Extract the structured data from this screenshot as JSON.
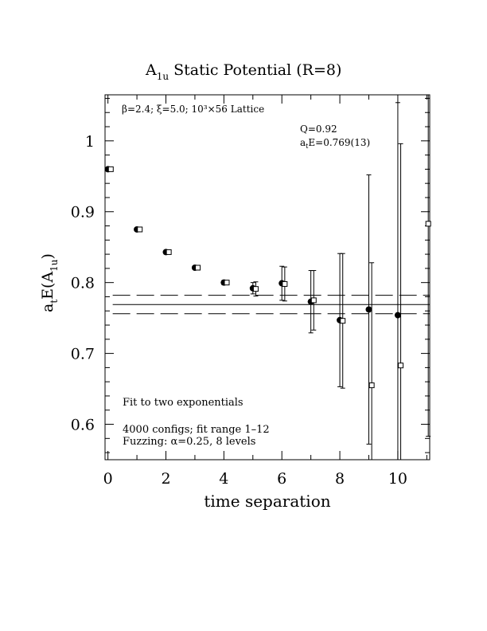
{
  "chart_data": {
    "type": "scatter",
    "title_main": "A",
    "title_sub": "1u",
    "title_rest": " Static Potential (R=8)",
    "lattice_note": "β=2.4; ξ=5.0; 10³×56 Lattice",
    "fit_q": "Q=0.92",
    "fit_e_prefix": "a",
    "fit_e_sub": "t",
    "fit_e_rest": "E=0.769(13)",
    "ylabel_a": "a",
    "ylabel_t": "t",
    "ylabel_e": "E(A",
    "ylabel_sub": "1u",
    "ylabel_close": ")",
    "xlabel": "time separation",
    "note_fit": "Fit to two exponentials",
    "note_configs": "4000 configs; fit range 1–12",
    "note_fuzz": "Fuzzing: α=0.25, 8 levels",
    "xlim": [
      -0.1,
      11.1
    ],
    "ylim": [
      0.55,
      1.065
    ],
    "xticks": [
      0,
      2,
      4,
      6,
      8,
      10
    ],
    "yticks": [
      0.6,
      0.7,
      0.8,
      0.9,
      1
    ],
    "ytick_labels": [
      "0.6",
      "0.7",
      "0.8",
      "0.9",
      "1"
    ],
    "grid": false,
    "fit": {
      "value": 0.769,
      "upper": 0.782,
      "lower": 0.756,
      "range": [
        0,
        11.1
      ]
    },
    "series": [
      {
        "marker": "filled-circle",
        "points": [
          {
            "x": 0,
            "y": 0.96,
            "err": 0.002
          },
          {
            "x": 1,
            "y": 0.875,
            "err": 0.002
          },
          {
            "x": 2,
            "y": 0.843,
            "err": 0.002
          },
          {
            "x": 3,
            "y": 0.821,
            "err": 0.002
          },
          {
            "x": 4,
            "y": 0.8,
            "err": 0.003
          },
          {
            "x": 5,
            "y": 0.792,
            "err": 0.008
          },
          {
            "x": 6,
            "y": 0.799,
            "err": 0.024
          },
          {
            "x": 7,
            "y": 0.773,
            "err": 0.044
          },
          {
            "x": 8,
            "y": 0.747,
            "err": 0.094
          },
          {
            "x": 9,
            "y": 0.762,
            "err": 0.19
          },
          {
            "x": 10,
            "y": 0.754,
            "err": 0.3
          }
        ]
      },
      {
        "marker": "open-square",
        "points": [
          {
            "x": 0.1,
            "y": 0.96,
            "err": 0.002
          },
          {
            "x": 1.1,
            "y": 0.875,
            "err": 0.002
          },
          {
            "x": 2.1,
            "y": 0.843,
            "err": 0.002
          },
          {
            "x": 3.1,
            "y": 0.821,
            "err": 0.002
          },
          {
            "x": 4.1,
            "y": 0.8,
            "err": 0.003
          },
          {
            "x": 5.1,
            "y": 0.791,
            "err": 0.01
          },
          {
            "x": 6.1,
            "y": 0.798,
            "err": 0.024
          },
          {
            "x": 7.1,
            "y": 0.775,
            "err": 0.042
          },
          {
            "x": 8.1,
            "y": 0.746,
            "err": 0.095
          },
          {
            "x": 9.1,
            "y": 0.655,
            "err": 0.173
          },
          {
            "x": 10.1,
            "y": 0.683,
            "err": 0.313
          },
          {
            "x": 11.05,
            "y": 0.883,
            "err": 0.3
          }
        ]
      }
    ]
  }
}
